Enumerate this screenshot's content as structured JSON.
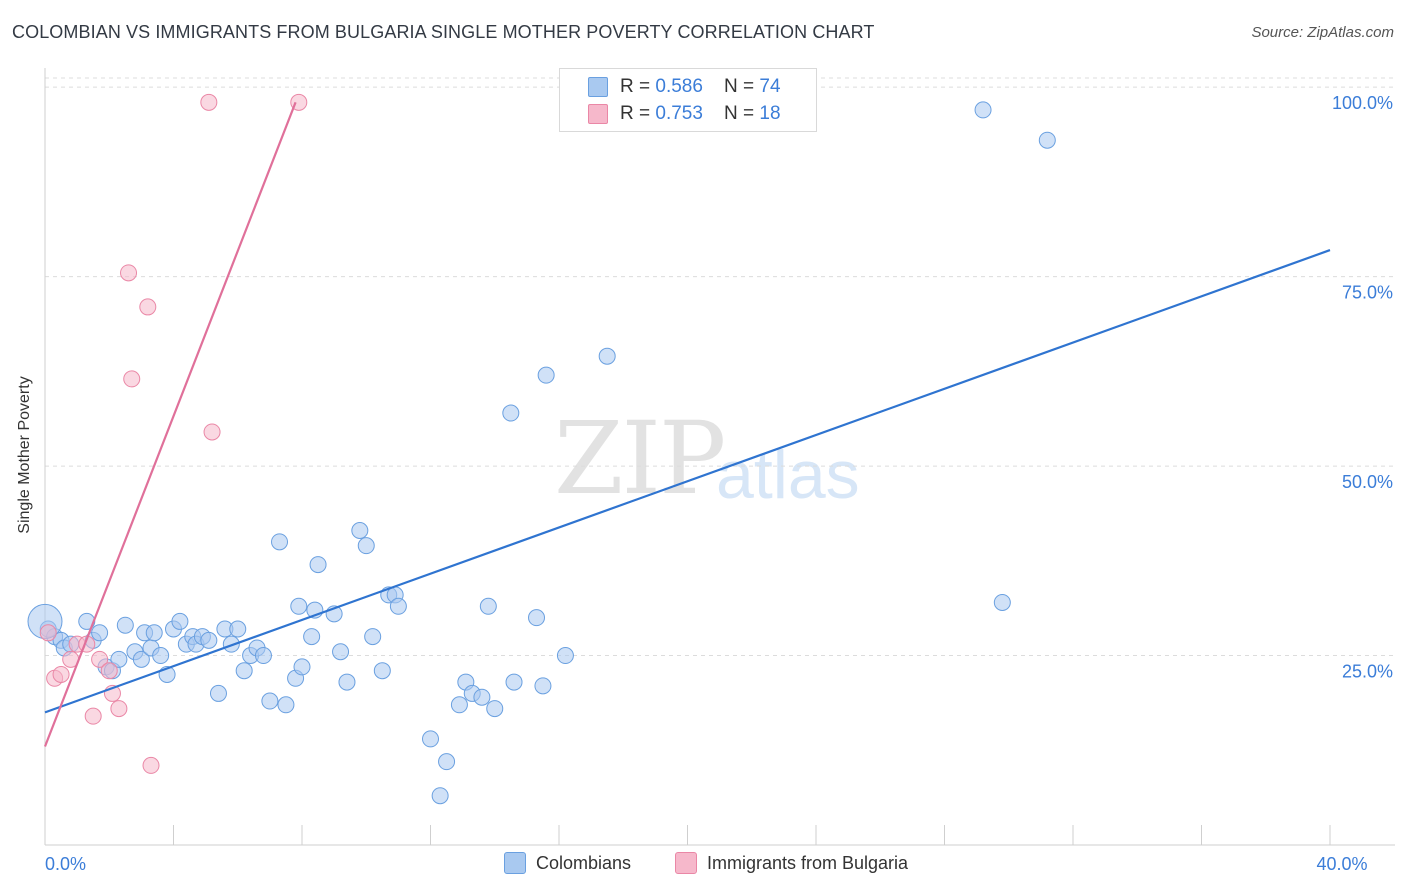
{
  "header": {
    "title": "COLOMBIAN VS IMMIGRANTS FROM BULGARIA SINGLE MOTHER POVERTY CORRELATION CHART",
    "source": "Source: ZipAtlas.com"
  },
  "watermark": {
    "zip": "ZIP",
    "atlas": "atlas"
  },
  "legend_top": [
    {
      "r_label": "R = ",
      "r_value": "0.586",
      "n_label": "N = ",
      "n_value": "74",
      "color": "#a9c9f0"
    },
    {
      "r_label": "R = ",
      "r_value": "0.753",
      "n_label": "N = ",
      "n_value": "18",
      "color": "#f6b8cb"
    }
  ],
  "legend_bottom": [
    {
      "label": "Colombians",
      "color": "#a9c9f0"
    },
    {
      "label": "Immigrants from Bulgaria",
      "color": "#f6b8cb"
    }
  ],
  "colors": {
    "blue_fill": "#a9c9f0",
    "blue_stroke": "#6aa0e0",
    "blue_line": "#2f74d0",
    "pink_fill": "#f6b8cb",
    "pink_stroke": "#ea87a6",
    "pink_line": "#e0709a",
    "tick_text": "#3b7dd8",
    "grid": "#dcdcdc"
  },
  "chart_data": {
    "type": "scatter",
    "ylabel": "Single Mother Poverty",
    "xlabel": "",
    "xlim": [
      0,
      40
    ],
    "ylim": [
      0,
      102
    ],
    "x_tick_labels": [
      {
        "value": 0,
        "label": "0.0%"
      },
      {
        "value": 40,
        "label": "40.0%"
      }
    ],
    "y_tick_labels": [
      {
        "value": 25,
        "label": "25.0%"
      },
      {
        "value": 50,
        "label": "50.0%"
      },
      {
        "value": 75,
        "label": "75.0%"
      },
      {
        "value": 100,
        "label": "100.0%"
      }
    ],
    "grid": "horizontal dashed",
    "series": [
      {
        "name": "Colombians",
        "r": 0.586,
        "n": 74,
        "trend": {
          "x": [
            0,
            40
          ],
          "y": [
            17.5,
            78.5
          ]
        },
        "points": [
          [
            0.1,
            28.5
          ],
          [
            0.3,
            27.5
          ],
          [
            0.5,
            27.0
          ],
          [
            0.6,
            26.0
          ],
          [
            0.8,
            26.5
          ],
          [
            1.3,
            29.5
          ],
          [
            1.5,
            27.0
          ],
          [
            1.7,
            28.0
          ],
          [
            1.9,
            23.5
          ],
          [
            2.1,
            23.0
          ],
          [
            2.3,
            24.5
          ],
          [
            2.5,
            29.0
          ],
          [
            2.8,
            25.5
          ],
          [
            3.0,
            24.5
          ],
          [
            3.1,
            28.0
          ],
          [
            3.3,
            26.0
          ],
          [
            3.4,
            28.0
          ],
          [
            3.6,
            25.0
          ],
          [
            3.8,
            22.5
          ],
          [
            4.0,
            28.5
          ],
          [
            4.2,
            29.5
          ],
          [
            4.4,
            26.5
          ],
          [
            4.6,
            27.5
          ],
          [
            4.7,
            26.5
          ],
          [
            4.9,
            27.5
          ],
          [
            5.1,
            27.0
          ],
          [
            5.4,
            20.0
          ],
          [
            5.6,
            28.5
          ],
          [
            5.8,
            26.5
          ],
          [
            6.0,
            28.5
          ],
          [
            6.2,
            23.0
          ],
          [
            6.4,
            25.0
          ],
          [
            6.6,
            26.0
          ],
          [
            6.8,
            25.0
          ],
          [
            7.0,
            19.0
          ],
          [
            7.3,
            40.0
          ],
          [
            7.5,
            18.5
          ],
          [
            7.8,
            22.0
          ],
          [
            7.9,
            31.5
          ],
          [
            8.0,
            23.5
          ],
          [
            8.3,
            27.5
          ],
          [
            8.4,
            31.0
          ],
          [
            8.5,
            37.0
          ],
          [
            9.0,
            30.5
          ],
          [
            9.2,
            25.5
          ],
          [
            9.4,
            21.5
          ],
          [
            9.8,
            41.5
          ],
          [
            10.0,
            39.5
          ],
          [
            10.2,
            27.5
          ],
          [
            10.5,
            23.0
          ],
          [
            10.7,
            33.0
          ],
          [
            10.9,
            33.0
          ],
          [
            11.0,
            31.5
          ],
          [
            12.0,
            14.0
          ],
          [
            12.3,
            6.5
          ],
          [
            12.5,
            11.0
          ],
          [
            12.9,
            18.5
          ],
          [
            13.1,
            21.5
          ],
          [
            13.3,
            20.0
          ],
          [
            13.6,
            19.5
          ],
          [
            13.8,
            31.5
          ],
          [
            14.0,
            18.0
          ],
          [
            14.6,
            21.5
          ],
          [
            14.5,
            57.0
          ],
          [
            15.3,
            30.0
          ],
          [
            15.5,
            21.0
          ],
          [
            15.6,
            62.0
          ],
          [
            16.2,
            25.0
          ],
          [
            17.5,
            64.5
          ],
          [
            23.0,
            98.0
          ],
          [
            29.2,
            97.0
          ],
          [
            31.2,
            93.0
          ],
          [
            29.8,
            32.0
          ],
          [
            0.0,
            29.5
          ]
        ]
      },
      {
        "name": "Immigrants from Bulgaria",
        "r": 0.753,
        "n": 18,
        "trend": {
          "x": [
            0,
            7.8
          ],
          "y": [
            13.0,
            98.0
          ]
        },
        "points": [
          [
            0.1,
            28.0
          ],
          [
            0.3,
            22.0
          ],
          [
            0.5,
            22.5
          ],
          [
            0.8,
            24.5
          ],
          [
            1.0,
            26.5
          ],
          [
            1.3,
            26.5
          ],
          [
            1.5,
            17.0
          ],
          [
            1.7,
            24.5
          ],
          [
            2.0,
            23.0
          ],
          [
            2.1,
            20.0
          ],
          [
            2.3,
            18.0
          ],
          [
            2.6,
            75.5
          ],
          [
            2.7,
            61.5
          ],
          [
            3.2,
            71.0
          ],
          [
            3.3,
            10.5
          ],
          [
            5.2,
            54.5
          ],
          [
            5.1,
            98.0
          ],
          [
            7.9,
            98.0
          ]
        ]
      }
    ]
  }
}
